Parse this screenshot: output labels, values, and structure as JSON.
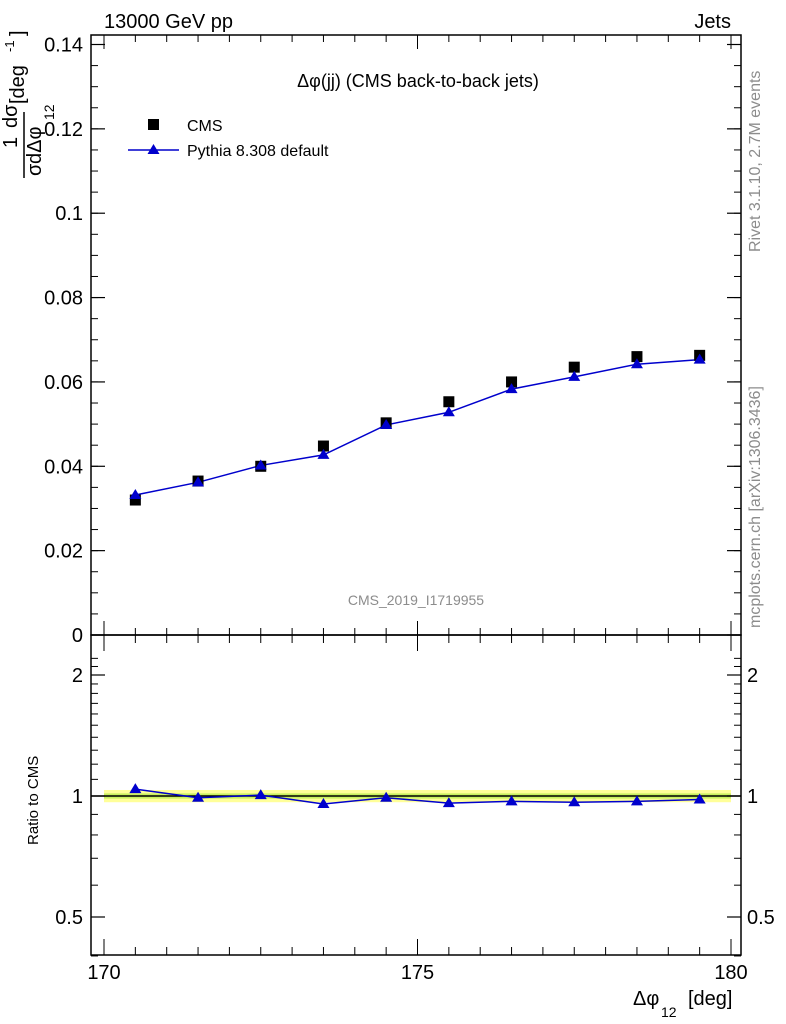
{
  "header": {
    "left": "13000 GeV pp",
    "right": "Jets"
  },
  "side_labels": {
    "rivet": "Rivet 3.1.10,  2.7M events",
    "mcplots": "mcplots.cern.ch [arXiv:1306.3436]"
  },
  "chart_data": [
    {
      "type": "scatter",
      "title": "Δφ(jj) (CMS back-to-back jets)",
      "watermark": "CMS_2019_I1719955",
      "ylabel": {
        "prefix": "1",
        "num": "dσ",
        "den_a": "σ",
        "den_b": "dΔφ",
        "den_sub": "12",
        "unit": "[deg",
        "unit_sup": "-1",
        "unit_close": "]"
      },
      "xlim": [
        170,
        180
      ],
      "ylim": [
        0,
        0.142
      ],
      "yticks": [
        0,
        0.02,
        0.04,
        0.06,
        0.08,
        0.1,
        0.12,
        0.14
      ],
      "ytick_labels": [
        "0",
        "0.02",
        "0.04",
        "0.06",
        "0.08",
        "0.1",
        "0.12",
        "0.14"
      ],
      "legend_placement": "top-left",
      "x": [
        170.5,
        171.5,
        172.5,
        173.5,
        174.5,
        175.5,
        176.5,
        177.5,
        178.5,
        179.5
      ],
      "series": [
        {
          "name": "CMS",
          "marker": "square",
          "color": "#000000",
          "values": [
            0.032,
            0.0365,
            0.04,
            0.0448,
            0.0503,
            0.0553,
            0.06,
            0.0635,
            0.066,
            0.0663
          ]
        },
        {
          "name": "Pythia 8.308 default",
          "marker": "triangle",
          "color": "#0000cc",
          "values": [
            0.0332,
            0.0362,
            0.0402,
            0.0427,
            0.0498,
            0.0528,
            0.0583,
            0.0612,
            0.0642,
            0.0653
          ]
        }
      ]
    },
    {
      "type": "line",
      "ylabel": "Ratio to CMS",
      "xlabel": {
        "main": "Δφ",
        "sub": "12",
        "unit": "[deg]"
      },
      "xlim": [
        170,
        180
      ],
      "ylim": [
        0.3,
        2.3
      ],
      "xticks": [
        170,
        175,
        180
      ],
      "xtick_labels": [
        "170",
        "175",
        "180"
      ],
      "yticks": [
        0.5,
        1,
        2
      ],
      "ytick_labels": [
        "0.5",
        "1",
        "2"
      ],
      "reference_value": 1,
      "band": {
        "inner": [
          0.985,
          1.015
        ],
        "outer": [
          0.965,
          1.035
        ],
        "inner_color": "#c8f060",
        "outer_color": "#ffff99"
      },
      "x": [
        170.5,
        171.5,
        172.5,
        173.5,
        174.5,
        175.5,
        176.5,
        177.5,
        178.5,
        179.5
      ],
      "series": [
        {
          "name": "Pythia 8.308 default",
          "color": "#0000cc",
          "values": [
            1.04,
            0.99,
            1.005,
            0.955,
            0.99,
            0.96,
            0.97,
            0.965,
            0.97,
            0.98
          ]
        }
      ]
    }
  ]
}
